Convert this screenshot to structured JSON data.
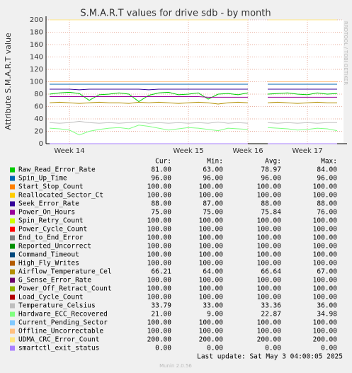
{
  "chart_data": {
    "type": "line",
    "title": "S.M.A.R.T values for drive sdb - by month",
    "y_label": "Attribute S.M.A.R.T value",
    "side_text": "RRDTOOL / TOBI OETIKER",
    "categories": [
      null,
      null,
      "Week 14",
      null,
      null,
      null,
      null,
      null,
      null,
      null,
      null,
      null,
      null,
      null,
      "Week 15",
      null,
      null,
      null,
      null,
      null,
      "Week 16",
      null,
      null,
      null,
      null,
      null,
      "Week 17",
      null,
      null,
      null
    ],
    "ylim": [
      0,
      200
    ],
    "yticks": [
      0,
      20,
      40,
      60,
      80,
      100,
      120,
      140,
      160,
      180,
      200
    ],
    "grid": true,
    "stats_columns": [
      "Cur:",
      "Min:",
      "Avg:",
      "Max:"
    ],
    "series": [
      {
        "name": "Raw_Read_Error_Rate",
        "color": "#00cc00",
        "values": [
          80,
          82,
          83,
          81,
          70,
          79,
          80,
          82,
          80,
          68,
          78,
          82,
          83,
          79,
          80,
          82,
          72,
          80,
          81,
          79,
          82,
          null,
          80,
          81,
          82,
          80,
          79,
          82,
          80,
          81
        ],
        "stats": [
          "81.00",
          "63.00",
          "78.97",
          "84.00"
        ]
      },
      {
        "name": "Spin_Up_Time",
        "color": "#0066b3",
        "values": [
          96,
          96,
          96,
          96,
          96,
          96,
          96,
          96,
          96,
          96,
          96,
          96,
          96,
          96,
          96,
          96,
          96,
          96,
          96,
          96,
          96,
          null,
          96,
          96,
          96,
          96,
          96,
          96,
          96,
          96
        ],
        "stats": [
          "96.00",
          "96.00",
          "96.00",
          "96.00"
        ]
      },
      {
        "name": "Start_Stop_Count",
        "color": "#ff8000",
        "values": [
          100,
          100,
          100,
          100,
          100,
          100,
          100,
          100,
          100,
          100,
          100,
          100,
          100,
          100,
          100,
          100,
          100,
          100,
          100,
          100,
          100,
          null,
          100,
          100,
          100,
          100,
          100,
          100,
          100,
          100
        ],
        "stats": [
          "100.00",
          "100.00",
          "100.00",
          "100.00"
        ]
      },
      {
        "name": "Reallocated_Sector_Ct",
        "color": "#ffcc00",
        "values": [
          100,
          100,
          100,
          100,
          100,
          100,
          100,
          100,
          100,
          100,
          100,
          100,
          100,
          100,
          100,
          100,
          100,
          100,
          100,
          100,
          100,
          null,
          100,
          100,
          100,
          100,
          100,
          100,
          100,
          100
        ],
        "stats": [
          "100.00",
          "100.00",
          "100.00",
          "100.00"
        ]
      },
      {
        "name": "Seek_Error_Rate",
        "color": "#330099",
        "values": [
          88,
          88,
          88,
          87,
          88,
          88,
          88,
          88,
          88,
          88,
          87,
          88,
          88,
          88,
          88,
          88,
          88,
          88,
          88,
          88,
          88,
          null,
          88,
          88,
          88,
          88,
          88,
          88,
          88,
          88
        ],
        "stats": [
          "88.00",
          "87.00",
          "88.00",
          "88.00"
        ]
      },
      {
        "name": "Power_On_Hours",
        "color": "#990099",
        "values": [
          76,
          76,
          76,
          76,
          76,
          76,
          76,
          76,
          76,
          76,
          76,
          76,
          76,
          76,
          76,
          76,
          75,
          75,
          75,
          75,
          75,
          null,
          75,
          75,
          75,
          75,
          75,
          75,
          75,
          75
        ],
        "stats": [
          "75.00",
          "75.00",
          "75.84",
          "76.00"
        ]
      },
      {
        "name": "Spin_Retry_Count",
        "color": "#ccff00",
        "values": [
          100,
          100,
          100,
          100,
          100,
          100,
          100,
          100,
          100,
          100,
          100,
          100,
          100,
          100,
          100,
          100,
          100,
          100,
          100,
          100,
          100,
          null,
          100,
          100,
          100,
          100,
          100,
          100,
          100,
          100
        ],
        "stats": [
          "100.00",
          "100.00",
          "100.00",
          "100.00"
        ]
      },
      {
        "name": "Power_Cycle_Count",
        "color": "#ff0000",
        "values": [
          100,
          100,
          100,
          100,
          100,
          100,
          100,
          100,
          100,
          100,
          100,
          100,
          100,
          100,
          100,
          100,
          100,
          100,
          100,
          100,
          100,
          null,
          100,
          100,
          100,
          100,
          100,
          100,
          100,
          100
        ],
        "stats": [
          "100.00",
          "100.00",
          "100.00",
          "100.00"
        ]
      },
      {
        "name": "End_to_End_Error",
        "color": "#808080",
        "values": [
          100,
          100,
          100,
          100,
          100,
          100,
          100,
          100,
          100,
          100,
          100,
          100,
          100,
          100,
          100,
          100,
          100,
          100,
          100,
          100,
          100,
          null,
          100,
          100,
          100,
          100,
          100,
          100,
          100,
          100
        ],
        "stats": [
          "100.00",
          "100.00",
          "100.00",
          "100.00"
        ]
      },
      {
        "name": "Reported_Uncorrect",
        "color": "#008f00",
        "values": [
          100,
          100,
          100,
          100,
          100,
          100,
          100,
          100,
          100,
          100,
          100,
          100,
          100,
          100,
          100,
          100,
          100,
          100,
          100,
          100,
          100,
          null,
          100,
          100,
          100,
          100,
          100,
          100,
          100,
          100
        ],
        "stats": [
          "100.00",
          "100.00",
          "100.00",
          "100.00"
        ]
      },
      {
        "name": "Command_Timeout",
        "color": "#00487d",
        "values": [
          100,
          100,
          100,
          100,
          100,
          100,
          100,
          100,
          100,
          100,
          100,
          100,
          100,
          100,
          100,
          100,
          100,
          100,
          100,
          100,
          100,
          null,
          100,
          100,
          100,
          100,
          100,
          100,
          100,
          100
        ],
        "stats": [
          "100.00",
          "100.00",
          "100.00",
          "100.00"
        ]
      },
      {
        "name": "High_Fly_Writes",
        "color": "#b35a00",
        "values": [
          100,
          100,
          100,
          100,
          100,
          100,
          100,
          100,
          100,
          100,
          100,
          100,
          100,
          100,
          100,
          100,
          100,
          100,
          100,
          100,
          100,
          null,
          100,
          100,
          100,
          100,
          100,
          100,
          100,
          100
        ],
        "stats": [
          "100.00",
          "100.00",
          "100.00",
          "100.00"
        ]
      },
      {
        "name": "Airflow_Temperature_Cel",
        "color": "#b38f00",
        "values": [
          66,
          67,
          66,
          65,
          66,
          67,
          66,
          66,
          65,
          67,
          66,
          67,
          66,
          65,
          66,
          67,
          66,
          64,
          66,
          67,
          66,
          null,
          66,
          67,
          66,
          65,
          66,
          67,
          66,
          66
        ],
        "stats": [
          "66.21",
          "64.00",
          "66.64",
          "67.00"
        ]
      },
      {
        "name": "G_Sense_Error_Rate",
        "color": "#6b006b",
        "values": [
          100,
          100,
          100,
          100,
          100,
          100,
          100,
          100,
          100,
          100,
          100,
          100,
          100,
          100,
          100,
          100,
          100,
          100,
          100,
          100,
          100,
          null,
          100,
          100,
          100,
          100,
          100,
          100,
          100,
          100
        ],
        "stats": [
          "100.00",
          "100.00",
          "100.00",
          "100.00"
        ]
      },
      {
        "name": "Power_Off_Retract_Count",
        "color": "#8fb300",
        "values": [
          100,
          100,
          100,
          100,
          100,
          100,
          100,
          100,
          100,
          100,
          100,
          100,
          100,
          100,
          100,
          100,
          100,
          100,
          100,
          100,
          100,
          null,
          100,
          100,
          100,
          100,
          100,
          100,
          100,
          100
        ],
        "stats": [
          "100.00",
          "100.00",
          "100.00",
          "100.00"
        ]
      },
      {
        "name": "Load_Cycle_Count",
        "color": "#b30000",
        "values": [
          100,
          100,
          100,
          100,
          100,
          100,
          100,
          100,
          100,
          100,
          100,
          100,
          100,
          100,
          100,
          100,
          100,
          100,
          100,
          100,
          100,
          null,
          100,
          100,
          100,
          100,
          100,
          100,
          100,
          100
        ],
        "stats": [
          "100.00",
          "100.00",
          "100.00",
          "100.00"
        ]
      },
      {
        "name": "Temperature_Celsius",
        "color": "#bebebe",
        "values": [
          34,
          33,
          34,
          36,
          34,
          33,
          34,
          33,
          34,
          35,
          33,
          34,
          33,
          34,
          33,
          34,
          33,
          35,
          33,
          34,
          33,
          null,
          34,
          33,
          34,
          33,
          34,
          33,
          34,
          34
        ],
        "stats": [
          "33.79",
          "33.00",
          "33.36",
          "36.00"
        ]
      },
      {
        "name": "Hardware_ECC_Recovered",
        "color": "#80ff80",
        "values": [
          25,
          24,
          22,
          14,
          20,
          23,
          25,
          26,
          24,
          30,
          28,
          25,
          22,
          24,
          26,
          25,
          23,
          21,
          25,
          24,
          23,
          null,
          26,
          25,
          24,
          22,
          23,
          25,
          24,
          21
        ],
        "stats": [
          "21.00",
          "9.00",
          "22.87",
          "34.98"
        ]
      },
      {
        "name": "Current_Pending_Sector",
        "color": "#80c9ff",
        "values": [
          100,
          100,
          100,
          100,
          100,
          100,
          100,
          100,
          100,
          100,
          100,
          100,
          100,
          100,
          100,
          100,
          100,
          100,
          100,
          100,
          100,
          null,
          100,
          100,
          100,
          100,
          100,
          100,
          100,
          100
        ],
        "stats": [
          "100.00",
          "100.00",
          "100.00",
          "100.00"
        ]
      },
      {
        "name": "Offline_Uncorrectable",
        "color": "#ffc080",
        "values": [
          100,
          100,
          100,
          100,
          100,
          100,
          100,
          100,
          100,
          100,
          100,
          100,
          100,
          100,
          100,
          100,
          100,
          100,
          100,
          100,
          100,
          null,
          100,
          100,
          100,
          100,
          100,
          100,
          100,
          100
        ],
        "stats": [
          "100.00",
          "100.00",
          "100.00",
          "100.00"
        ]
      },
      {
        "name": "UDMA_CRC_Error_Count",
        "color": "#ffe680",
        "values": [
          200,
          200,
          200,
          200,
          200,
          200,
          200,
          200,
          200,
          200,
          200,
          200,
          200,
          200,
          200,
          200,
          200,
          200,
          200,
          200,
          200,
          null,
          200,
          200,
          200,
          200,
          200,
          200,
          200,
          200
        ],
        "stats": [
          "200.00",
          "200.00",
          "200.00",
          "200.00"
        ]
      },
      {
        "name": "smartctl_exit_status",
        "color": "#aa80ff",
        "values": [
          0,
          0,
          0,
          0,
          0,
          0,
          0,
          0,
          0,
          0,
          0,
          0,
          0,
          0,
          0,
          0,
          0,
          0,
          0,
          0,
          0,
          null,
          0,
          0,
          0,
          0,
          0,
          0,
          0,
          0
        ],
        "stats": [
          "0.00",
          "0.00",
          "0.00",
          "0.00"
        ]
      }
    ],
    "last_update": "Last update: Sat May  3 04:00:05 2025",
    "version": "Munin 2.0.56"
  }
}
